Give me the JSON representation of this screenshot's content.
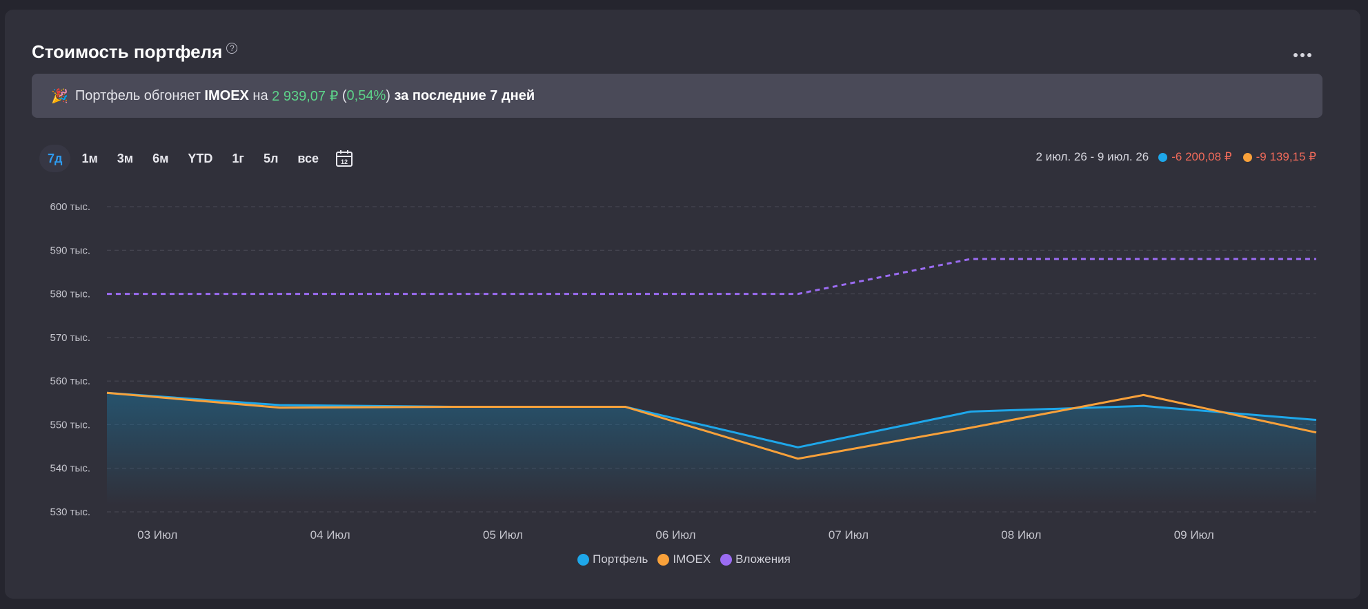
{
  "header": {
    "title": "Стоимость портфеля",
    "help_glyph": "?"
  },
  "banner": {
    "icon": "party-popper-icon",
    "text1": "Портфель обгоняет ",
    "index": "IMOEX",
    "text2": " на ",
    "amount": "2 939,07 ₽",
    "paren_open": " (",
    "pct": "0,54%",
    "paren_close": ")",
    "tail": " за последние 7 дней"
  },
  "periods": [
    "7д",
    "1м",
    "3м",
    "6м",
    "YTD",
    "1г",
    "5л",
    "все"
  ],
  "active_period": "7д",
  "summary": {
    "range": "2 июл. 26 - 9 июл. 26",
    "portfolio_change": "-6 200,08 ₽",
    "imoex_change": "-9 139,15 ₽"
  },
  "colors": {
    "portfolio": "#1ea7ea",
    "imoex": "#f9a13a",
    "invest": "#9b6cf2",
    "negative": "#f06a5a",
    "positive": "#5dd48a"
  },
  "chart_data": {
    "type": "line",
    "y_ticks": [
      "600 тыс.",
      "590 тыс.",
      "580 тыс.",
      "570 тыс.",
      "560 тыс.",
      "550 тыс.",
      "540 тыс.",
      "530 тыс."
    ],
    "y_tick_values": [
      600000,
      590000,
      580000,
      570000,
      560000,
      550000,
      540000,
      530000
    ],
    "ylim": [
      530000,
      600000
    ],
    "x_tick_labels": [
      "03 Июл",
      "04 Июл",
      "05 Июл",
      "06 Июл",
      "07 Июл",
      "08 Июл",
      "09 Июл"
    ],
    "x": [
      "02 июл.",
      "03 июл.",
      "04 июл.",
      "05 июл.",
      "06 июл.",
      "07 июл.",
      "08 июл.",
      "09 июл."
    ],
    "grid": true,
    "legend_position": "bottom-center",
    "series": [
      {
        "name": "Портфель",
        "color": "#1ea7ea",
        "style": "solid",
        "fill": true,
        "values": [
          557300,
          554500,
          554100,
          554100,
          544800,
          553000,
          554300,
          551100
        ]
      },
      {
        "name": "IMOEX",
        "color": "#f9a13a",
        "style": "solid",
        "fill": false,
        "values": [
          557300,
          553900,
          554100,
          554100,
          542200,
          549300,
          556800,
          548200
        ]
      },
      {
        "name": "Вложения",
        "color": "#9b6cf2",
        "style": "dashed",
        "fill": false,
        "values": [
          580000,
          580000,
          580000,
          580000,
          580000,
          588000,
          588000,
          588000
        ]
      }
    ]
  }
}
